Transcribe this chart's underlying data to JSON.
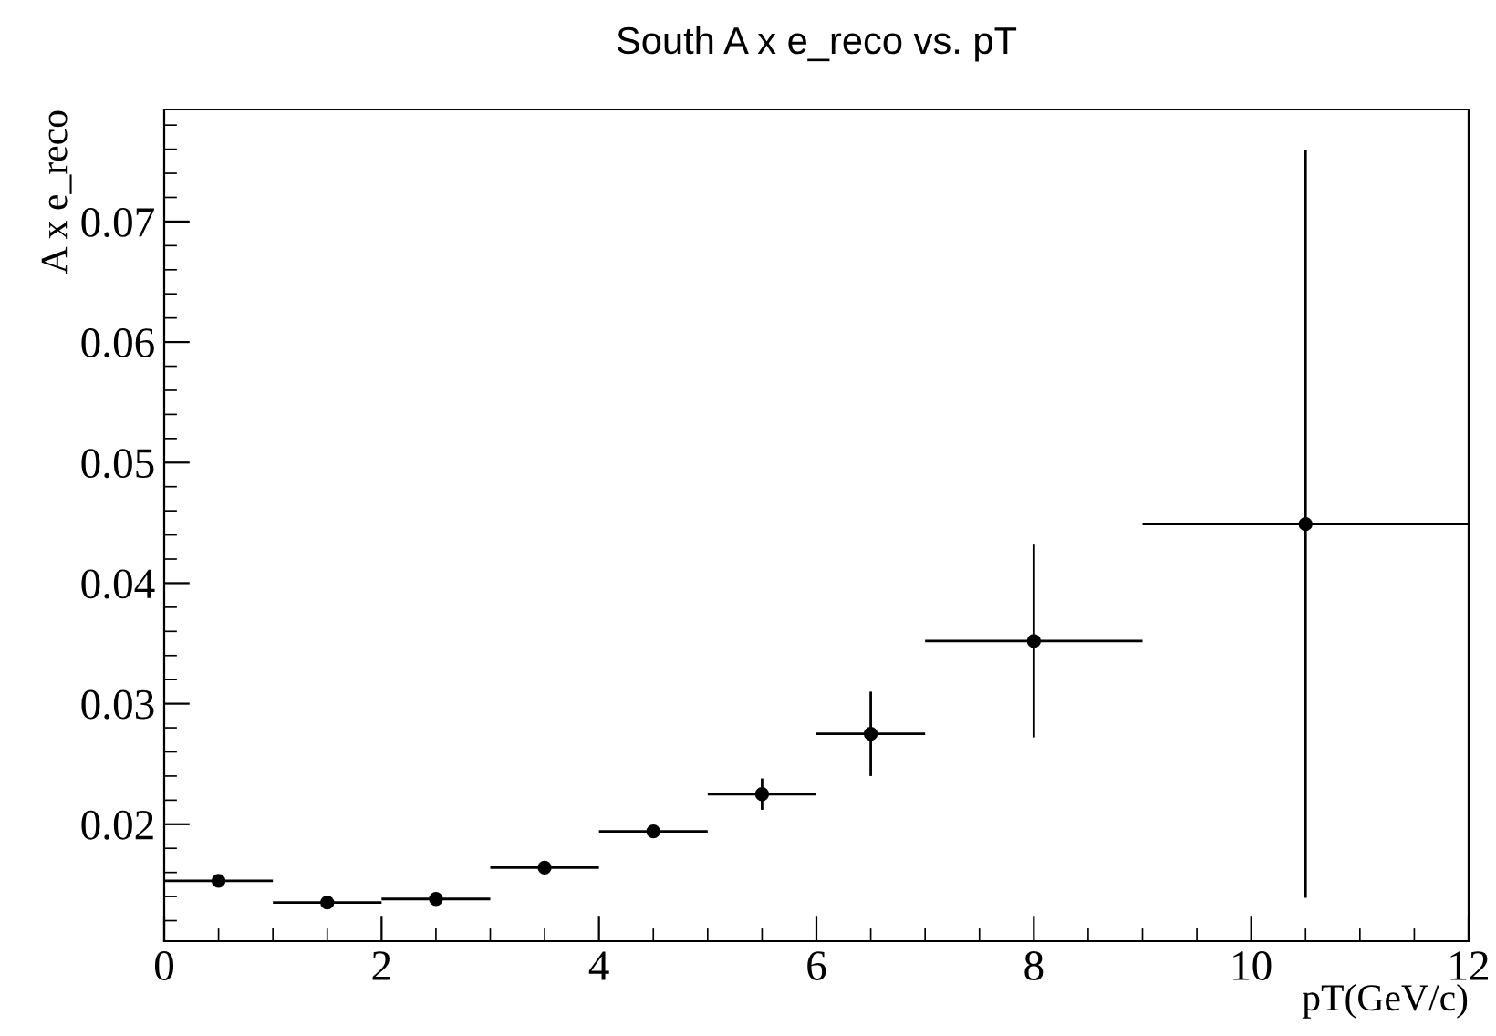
{
  "chart_data": {
    "type": "scatter",
    "title": "South A x e_reco vs. pT",
    "xlabel": "pT(GeV/c)",
    "ylabel": "A x e_reco",
    "x": [
      0.5,
      1.5,
      2.5,
      3.5,
      4.5,
      5.5,
      6.5,
      8,
      10.5
    ],
    "series": [
      {
        "color": "#000000",
        "values": [
          0.0153,
          0.0135,
          0.0138,
          0.0164,
          0.0194,
          0.0225,
          0.0275,
          0.0352,
          0.0449
        ],
        "errors": [
          null,
          null,
          null,
          null,
          null,
          0.0013,
          0.0035,
          0.008,
          0.031
        ],
        "xerrors": [
          0.5,
          0.5,
          0.5,
          0.5,
          0.5,
          0.5,
          0.5,
          1,
          1.5
        ]
      }
    ],
    "xlim": [
      0,
      12
    ],
    "ylim": [
      0.0103,
      0.0793
    ],
    "xticks": [
      0,
      2,
      4,
      6,
      8,
      10,
      12
    ],
    "yticks": [
      0.02,
      0.03,
      0.04,
      0.05,
      0.06,
      0.07
    ],
    "marker": "circle",
    "grid": false,
    "legend": false
  }
}
